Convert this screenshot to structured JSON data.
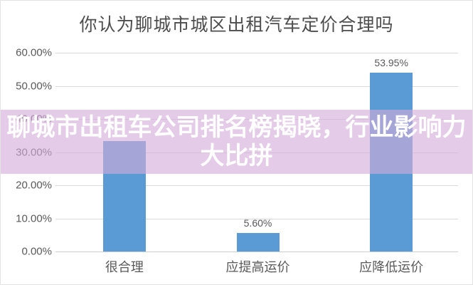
{
  "page": {
    "chart_title": "你认为聊城市城区出租汽车定价合理吗",
    "banner": {
      "line1": "聊城市出租车公司排名榜揭晓，行业影响力",
      "line2": "大比拼"
    }
  },
  "colors": {
    "bar_fill": "#5B9BD5",
    "banner_bg": "rgba(211,171,217,0.62)",
    "banner_text": "#ffffff",
    "gridline": "#d9d9d9",
    "axis_text": "#595959",
    "title_text": "#4d4d4d"
  },
  "chart_data": {
    "type": "bar",
    "title": "你认为聊城市城区出租汽车定价合理吗",
    "categories": [
      "很合理",
      "应提高运价",
      "应降低运价"
    ],
    "values": [
      33.3,
      5.6,
      53.95
    ],
    "data_labels": [
      "",
      "5.60%",
      "53.95%"
    ],
    "y_ticks": [
      {
        "value": 0,
        "label": "0.00%"
      },
      {
        "value": 10,
        "label": "10.00%"
      },
      {
        "value": 20,
        "label": "20.00%"
      },
      {
        "value": 30,
        "label": "30.00%"
      },
      {
        "value": 40,
        "label": "40.00%"
      },
      {
        "value": 50,
        "label": "50.00%"
      },
      {
        "value": 60,
        "label": "60.00%"
      }
    ],
    "ylim": [
      0,
      60
    ],
    "xlabel": "",
    "ylabel": "",
    "grid": "horizontal",
    "legend": "none"
  }
}
